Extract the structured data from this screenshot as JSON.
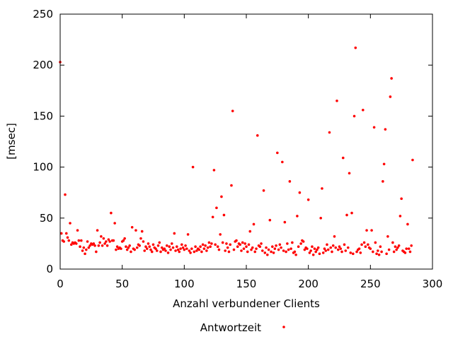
{
  "chart_data": {
    "type": "scatter",
    "title": "",
    "xlabel": "Anzahl verbundener Clients",
    "ylabel": "[msec]",
    "xlim": [
      0,
      300
    ],
    "ylim": [
      0,
      250
    ],
    "xticks": [
      "0",
      "50",
      "100",
      "150",
      "200",
      "250",
      "300"
    ],
    "yticks": [
      "0",
      "50",
      "100",
      "150",
      "200",
      "250"
    ],
    "grid": false,
    "legend_placement": "bottom-center",
    "series": [
      {
        "name": "Antwortzeit",
        "color": "#ff0000",
        "points": [
          [
            0,
            203
          ],
          [
            1,
            35
          ],
          [
            2,
            28
          ],
          [
            3,
            27
          ],
          [
            4,
            73
          ],
          [
            5,
            35
          ],
          [
            6,
            31
          ],
          [
            7,
            28
          ],
          [
            8,
            45
          ],
          [
            9,
            24
          ],
          [
            10,
            26
          ],
          [
            11,
            25
          ],
          [
            12,
            26
          ],
          [
            13,
            25
          ],
          [
            14,
            38
          ],
          [
            15,
            28
          ],
          [
            16,
            22
          ],
          [
            17,
            28
          ],
          [
            18,
            18
          ],
          [
            19,
            21
          ],
          [
            20,
            15
          ],
          [
            21,
            19
          ],
          [
            22,
            27
          ],
          [
            23,
            21
          ],
          [
            24,
            23
          ],
          [
            25,
            25
          ],
          [
            26,
            24
          ],
          [
            27,
            25
          ],
          [
            28,
            23
          ],
          [
            29,
            17
          ],
          [
            30,
            38
          ],
          [
            31,
            23
          ],
          [
            32,
            26
          ],
          [
            33,
            32
          ],
          [
            34,
            23
          ],
          [
            35,
            30
          ],
          [
            36,
            25
          ],
          [
            37,
            27
          ],
          [
            38,
            23
          ],
          [
            39,
            29
          ],
          [
            40,
            27
          ],
          [
            41,
            55
          ],
          [
            42,
            28
          ],
          [
            43,
            28
          ],
          [
            44,
            45
          ],
          [
            45,
            19
          ],
          [
            46,
            22
          ],
          [
            47,
            20
          ],
          [
            48,
            21
          ],
          [
            49,
            20
          ],
          [
            50,
            27
          ],
          [
            51,
            28
          ],
          [
            52,
            30
          ],
          [
            53,
            22
          ],
          [
            54,
            19
          ],
          [
            55,
            21
          ],
          [
            56,
            23
          ],
          [
            57,
            17
          ],
          [
            58,
            41
          ],
          [
            59,
            20
          ],
          [
            60,
            19
          ],
          [
            61,
            38
          ],
          [
            62,
            21
          ],
          [
            63,
            24
          ],
          [
            64,
            23
          ],
          [
            65,
            30
          ],
          [
            66,
            37
          ],
          [
            67,
            27
          ],
          [
            68,
            18
          ],
          [
            69,
            22
          ],
          [
            70,
            20
          ],
          [
            71,
            25
          ],
          [
            72,
            22
          ],
          [
            73,
            19
          ],
          [
            74,
            17
          ],
          [
            75,
            24
          ],
          [
            76,
            21
          ],
          [
            77,
            20
          ],
          [
            78,
            18
          ],
          [
            79,
            23
          ],
          [
            80,
            26
          ],
          [
            81,
            17
          ],
          [
            82,
            21
          ],
          [
            83,
            19
          ],
          [
            84,
            20
          ],
          [
            85,
            18
          ],
          [
            86,
            23
          ],
          [
            87,
            16
          ],
          [
            88,
            22
          ],
          [
            89,
            19
          ],
          [
            90,
            25
          ],
          [
            91,
            21
          ],
          [
            92,
            35
          ],
          [
            93,
            18
          ],
          [
            94,
            22
          ],
          [
            95,
            19
          ],
          [
            96,
            17
          ],
          [
            97,
            20
          ],
          [
            98,
            24
          ],
          [
            99,
            21
          ],
          [
            100,
            19
          ],
          [
            101,
            23
          ],
          [
            102,
            20
          ],
          [
            103,
            34
          ],
          [
            104,
            18
          ],
          [
            105,
            16
          ],
          [
            106,
            20
          ],
          [
            107,
            100
          ],
          [
            108,
            17
          ],
          [
            109,
            22
          ],
          [
            110,
            18
          ],
          [
            111,
            20
          ],
          [
            112,
            19
          ],
          [
            113,
            22
          ],
          [
            114,
            17
          ],
          [
            115,
            24
          ],
          [
            116,
            20
          ],
          [
            117,
            23
          ],
          [
            118,
            18
          ],
          [
            119,
            21
          ],
          [
            120,
            26
          ],
          [
            121,
            22
          ],
          [
            122,
            25
          ],
          [
            123,
            51
          ],
          [
            124,
            97
          ],
          [
            125,
            24
          ],
          [
            126,
            60
          ],
          [
            127,
            22
          ],
          [
            128,
            19
          ],
          [
            129,
            34
          ],
          [
            130,
            71
          ],
          [
            131,
            26
          ],
          [
            132,
            53
          ],
          [
            133,
            18
          ],
          [
            134,
            25
          ],
          [
            135,
            21
          ],
          [
            136,
            17
          ],
          [
            137,
            24
          ],
          [
            138,
            82
          ],
          [
            139,
            155
          ],
          [
            140,
            19
          ],
          [
            141,
            27
          ],
          [
            142,
            28
          ],
          [
            143,
            22
          ],
          [
            144,
            25
          ],
          [
            145,
            24
          ],
          [
            146,
            18
          ],
          [
            147,
            26
          ],
          [
            148,
            20
          ],
          [
            149,
            25
          ],
          [
            150,
            22
          ],
          [
            151,
            17
          ],
          [
            152,
            24
          ],
          [
            153,
            37
          ],
          [
            154,
            19
          ],
          [
            155,
            21
          ],
          [
            156,
            44
          ],
          [
            157,
            17
          ],
          [
            158,
            20
          ],
          [
            159,
            131
          ],
          [
            160,
            23
          ],
          [
            161,
            22
          ],
          [
            162,
            25
          ],
          [
            163,
            18
          ],
          [
            164,
            77
          ],
          [
            165,
            16
          ],
          [
            166,
            21
          ],
          [
            167,
            14
          ],
          [
            168,
            19
          ],
          [
            169,
            48
          ],
          [
            170,
            17
          ],
          [
            171,
            22
          ],
          [
            172,
            16
          ],
          [
            173,
            20
          ],
          [
            174,
            23
          ],
          [
            175,
            114
          ],
          [
            176,
            19
          ],
          [
            177,
            24
          ],
          [
            178,
            21
          ],
          [
            179,
            105
          ],
          [
            180,
            18
          ],
          [
            181,
            46
          ],
          [
            182,
            17
          ],
          [
            183,
            25
          ],
          [
            184,
            19
          ],
          [
            185,
            86
          ],
          [
            186,
            20
          ],
          [
            187,
            26
          ],
          [
            188,
            16
          ],
          [
            189,
            17
          ],
          [
            190,
            14
          ],
          [
            191,
            52
          ],
          [
            192,
            22
          ],
          [
            193,
            75
          ],
          [
            194,
            25
          ],
          [
            195,
            28
          ],
          [
            196,
            27
          ],
          [
            197,
            19
          ],
          [
            198,
            21
          ],
          [
            199,
            20
          ],
          [
            200,
            68
          ],
          [
            201,
            16
          ],
          [
            202,
            18
          ],
          [
            203,
            22
          ],
          [
            204,
            14
          ],
          [
            205,
            20
          ],
          [
            206,
            17
          ],
          [
            207,
            19
          ],
          [
            208,
            21
          ],
          [
            209,
            15
          ],
          [
            210,
            50
          ],
          [
            211,
            79
          ],
          [
            212,
            16
          ],
          [
            213,
            20
          ],
          [
            214,
            18
          ],
          [
            215,
            24
          ],
          [
            216,
            19
          ],
          [
            217,
            134
          ],
          [
            218,
            21
          ],
          [
            219,
            17
          ],
          [
            220,
            23
          ],
          [
            221,
            32
          ],
          [
            222,
            21
          ],
          [
            223,
            165
          ],
          [
            224,
            19
          ],
          [
            225,
            22
          ],
          [
            226,
            20
          ],
          [
            227,
            17
          ],
          [
            228,
            109
          ],
          [
            229,
            24
          ],
          [
            230,
            18
          ],
          [
            231,
            53
          ],
          [
            232,
            21
          ],
          [
            233,
            94
          ],
          [
            234,
            16
          ],
          [
            235,
            55
          ],
          [
            236,
            15
          ],
          [
            237,
            150
          ],
          [
            238,
            217
          ],
          [
            239,
            17
          ],
          [
            240,
            19
          ],
          [
            241,
            20
          ],
          [
            242,
            16
          ],
          [
            243,
            24
          ],
          [
            244,
            156
          ],
          [
            245,
            26
          ],
          [
            246,
            22
          ],
          [
            247,
            38
          ],
          [
            248,
            24
          ],
          [
            249,
            21
          ],
          [
            250,
            20
          ],
          [
            251,
            38
          ],
          [
            252,
            17
          ],
          [
            253,
            139
          ],
          [
            254,
            26
          ],
          [
            255,
            15
          ],
          [
            256,
            18
          ],
          [
            257,
            14
          ],
          [
            258,
            22
          ],
          [
            259,
            17
          ],
          [
            260,
            86
          ],
          [
            261,
            103
          ],
          [
            262,
            137
          ],
          [
            263,
            15
          ],
          [
            264,
            32
          ],
          [
            265,
            19
          ],
          [
            266,
            169
          ],
          [
            267,
            187
          ],
          [
            268,
            26
          ],
          [
            269,
            17
          ],
          [
            270,
            22
          ],
          [
            271,
            19
          ],
          [
            272,
            21
          ],
          [
            273,
            23
          ],
          [
            274,
            52
          ],
          [
            275,
            69
          ],
          [
            276,
            18
          ],
          [
            277,
            17
          ],
          [
            278,
            16
          ],
          [
            279,
            20
          ],
          [
            280,
            44
          ],
          [
            281,
            20
          ],
          [
            282,
            17
          ],
          [
            283,
            23
          ],
          [
            284,
            107
          ]
        ]
      }
    ]
  }
}
